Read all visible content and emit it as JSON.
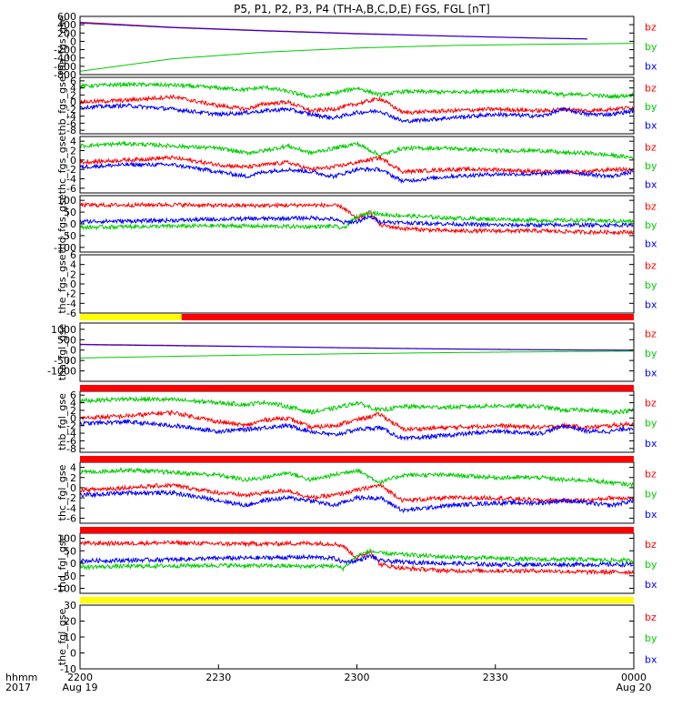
{
  "title": "P5, P1, P2, P3, P4 (TH-A,B,C,D,E) FGS, FGL [nT]",
  "colors": {
    "bz": "#ff0000",
    "by": "#00cc00",
    "bx": "#0000ff",
    "frame": "#000000",
    "bar_red": "#ff0000",
    "bar_yellow": "#ffff00"
  },
  "legend": [
    "bz",
    "by",
    "bx"
  ],
  "xaxis": {
    "row_labels": [
      "hhmm",
      "2017"
    ],
    "ticks": [
      {
        "t": 0,
        "label": "2200",
        "date": "Aug 19"
      },
      {
        "t": 30,
        "label": "2230",
        "date": ""
      },
      {
        "t": 60,
        "label": "2300",
        "date": ""
      },
      {
        "t": 90,
        "label": "2330",
        "date": ""
      },
      {
        "t": 120,
        "label": "0000",
        "date": "Aug 20"
      }
    ]
  },
  "chart_data": [
    {
      "type": "line",
      "name": "tha_fgs_gse",
      "ylabel": "tha_fgs_gse",
      "ylim": [
        -800,
        600
      ],
      "yticks": [
        600,
        400,
        200,
        0,
        -200,
        -400,
        -600,
        -800
      ],
      "series": [
        {
          "name": "bz",
          "x": [
            0,
            20,
            40,
            60,
            80,
            100,
            110
          ],
          "y": [
            460,
            340,
            260,
            190,
            130,
            80,
            60
          ]
        },
        {
          "name": "by",
          "x": [
            0,
            20,
            40,
            60,
            80,
            100,
            120
          ],
          "y": [
            -720,
            -420,
            -260,
            -160,
            -100,
            -70,
            -50
          ]
        },
        {
          "name": "bx",
          "x": [
            0,
            20,
            40,
            60,
            80,
            100,
            110
          ],
          "y": [
            440,
            330,
            250,
            180,
            125,
            75,
            55
          ]
        }
      ]
    },
    {
      "type": "line",
      "name": "thb_fgs_gse",
      "ylabel": "thb_fgs_gse",
      "ylim": [
        -9,
        7
      ],
      "yticks": [
        6,
        4,
        2,
        0,
        -2,
        -4,
        -6,
        -8
      ],
      "series": [
        {
          "name": "by",
          "x": [
            0,
            10,
            20,
            30,
            36,
            40,
            45,
            50,
            55,
            60,
            65,
            70,
            80,
            90,
            100,
            105,
            110,
            115,
            120
          ],
          "y": [
            4.5,
            5.0,
            4.8,
            4.0,
            3.5,
            4.2,
            3.0,
            1.5,
            2.5,
            4.0,
            2.0,
            3.0,
            2.8,
            3.2,
            3.0,
            2.0,
            2.2,
            1.5,
            2.0
          ]
        },
        {
          "name": "bz",
          "x": [
            0,
            10,
            20,
            30,
            36,
            40,
            45,
            50,
            55,
            60,
            65,
            70,
            80,
            90,
            100,
            105,
            110,
            115,
            120
          ],
          "y": [
            0,
            0.5,
            1.5,
            -1.0,
            -2.0,
            -0.5,
            0,
            -2.5,
            -2.0,
            -0.5,
            1.0,
            -3.0,
            -2.5,
            -2.0,
            -2.5,
            -2.0,
            -2.5,
            -2.0,
            -1.5
          ]
        },
        {
          "name": "bx",
          "x": [
            0,
            10,
            20,
            30,
            36,
            40,
            45,
            50,
            55,
            60,
            65,
            70,
            80,
            90,
            100,
            105,
            110,
            115,
            120
          ],
          "y": [
            -1.5,
            -1.0,
            -2.0,
            -3.5,
            -3.0,
            -2.5,
            -2.0,
            -3.5,
            -4.5,
            -3.0,
            -2.5,
            -5.5,
            -4.5,
            -3.5,
            -4.0,
            -2.0,
            -3.5,
            -3.5,
            -2.5
          ]
        }
      ]
    },
    {
      "type": "line",
      "name": "thc_fgs_gse",
      "ylabel": "thc_fgs_gse",
      "ylim": [
        -7,
        5
      ],
      "yticks": [
        4,
        2,
        0,
        -2,
        -4,
        -6
      ],
      "series": [
        {
          "name": "by",
          "x": [
            0,
            10,
            20,
            30,
            36,
            40,
            45,
            50,
            55,
            60,
            65,
            70,
            80,
            90,
            100,
            105,
            110,
            115,
            120
          ],
          "y": [
            3.0,
            3.5,
            3.0,
            2.5,
            1.5,
            2.0,
            3.0,
            1.5,
            2.5,
            3.5,
            1.0,
            2.5,
            2.5,
            2.0,
            2.0,
            1.5,
            1.5,
            1.0,
            0.5
          ]
        },
        {
          "name": "bz",
          "x": [
            0,
            10,
            20,
            30,
            36,
            40,
            45,
            50,
            55,
            60,
            65,
            70,
            80,
            90,
            100,
            105,
            110,
            115,
            120
          ],
          "y": [
            -0.5,
            0,
            0.5,
            -1.0,
            -1.5,
            -1.0,
            -0.5,
            -2.0,
            -1.5,
            -0.5,
            0.5,
            -2.5,
            -2.0,
            -2.0,
            -2.5,
            -2.5,
            -2.5,
            -2.0,
            -2.0
          ]
        },
        {
          "name": "bx",
          "x": [
            0,
            10,
            20,
            30,
            36,
            40,
            45,
            50,
            55,
            60,
            65,
            70,
            80,
            90,
            100,
            105,
            110,
            115,
            120
          ],
          "y": [
            -1.5,
            -1.0,
            -1.0,
            -2.5,
            -3.5,
            -2.5,
            -2.0,
            -2.5,
            -3.5,
            -2.0,
            -2.0,
            -4.5,
            -3.5,
            -3.0,
            -3.0,
            -2.5,
            -3.0,
            -3.5,
            -2.5
          ]
        }
      ]
    },
    {
      "type": "line",
      "name": "thd_fgs_gse",
      "ylabel": "thd_fgs_gse",
      "ylim": [
        -120,
        120
      ],
      "yticks": [
        100,
        50,
        0,
        -50,
        -100
      ],
      "series": [
        {
          "name": "bz",
          "x": [
            0,
            10,
            20,
            30,
            40,
            50,
            55,
            57,
            60,
            63,
            65,
            70,
            80,
            90,
            100,
            110,
            120
          ],
          "y": [
            80,
            80,
            82,
            78,
            78,
            80,
            78,
            70,
            20,
            50,
            -5,
            -20,
            -30,
            -30,
            -30,
            -35,
            -35
          ]
        },
        {
          "name": "by",
          "x": [
            0,
            10,
            20,
            30,
            40,
            50,
            55,
            57,
            60,
            63,
            65,
            70,
            80,
            90,
            100,
            110,
            120
          ],
          "y": [
            -15,
            -12,
            -10,
            -8,
            -10,
            -12,
            -10,
            -20,
            30,
            50,
            40,
            35,
            25,
            20,
            15,
            15,
            10
          ]
        },
        {
          "name": "bx",
          "x": [
            0,
            10,
            20,
            30,
            40,
            50,
            55,
            57,
            60,
            63,
            65,
            70,
            80,
            90,
            100,
            110,
            120
          ],
          "y": [
            10,
            12,
            15,
            20,
            22,
            25,
            20,
            5,
            10,
            30,
            10,
            5,
            0,
            -5,
            -5,
            -5,
            -5
          ]
        }
      ]
    },
    {
      "type": "line",
      "name": "the_fgs_gse",
      "ylabel": "the_fgs_gse",
      "ylim": [
        -6,
        6
      ],
      "yticks": [
        6,
        4,
        2,
        0,
        -2,
        -4,
        -6
      ],
      "series": []
    },
    {
      "type": "line",
      "name": "tha_fgl_gse",
      "ylabel": "tha_fgl_gse",
      "ylim": [
        -1500,
        1300
      ],
      "yticks": [
        1000,
        500,
        0,
        -500,
        -1000
      ],
      "series": [
        {
          "name": "bz",
          "x": [
            0,
            20,
            40,
            60,
            80,
            100,
            120
          ],
          "y": [
            280,
            230,
            170,
            110,
            60,
            20,
            0
          ]
        },
        {
          "name": "by",
          "x": [
            0,
            20,
            40,
            60,
            80,
            100,
            120
          ],
          "y": [
            -380,
            -300,
            -230,
            -170,
            -120,
            -80,
            -50
          ]
        },
        {
          "name": "bx",
          "x": [
            0,
            20,
            40,
            60,
            80,
            100,
            120
          ],
          "y": [
            260,
            210,
            160,
            100,
            50,
            10,
            -10
          ]
        }
      ]
    },
    {
      "type": "line",
      "name": "thb_fgl_gse",
      "ylabel": "thb_fgl_gse",
      "ylim": [
        -9,
        7
      ],
      "yticks": [
        6,
        4,
        2,
        0,
        -2,
        -4,
        -6,
        -8
      ],
      "series": [
        {
          "name": "by",
          "x": [
            0,
            10,
            20,
            30,
            36,
            40,
            45,
            50,
            55,
            60,
            65,
            70,
            80,
            90,
            100,
            105,
            110,
            115,
            120
          ],
          "y": [
            4.5,
            5.0,
            4.8,
            4.0,
            3.5,
            4.2,
            3.0,
            1.5,
            2.5,
            4.0,
            2.0,
            3.0,
            2.8,
            3.2,
            3.0,
            2.0,
            2.2,
            1.5,
            2.0
          ]
        },
        {
          "name": "bz",
          "x": [
            0,
            10,
            20,
            30,
            36,
            40,
            45,
            50,
            55,
            60,
            65,
            70,
            80,
            90,
            100,
            105,
            110,
            115,
            120
          ],
          "y": [
            0,
            0.5,
            1.5,
            -1.0,
            -2.0,
            -0.5,
            0,
            -2.5,
            -2.0,
            -0.5,
            1.0,
            -3.0,
            -2.5,
            -2.0,
            -2.5,
            -2.0,
            -2.5,
            -2.0,
            -1.5
          ]
        },
        {
          "name": "bx",
          "x": [
            0,
            10,
            20,
            30,
            36,
            40,
            45,
            50,
            55,
            60,
            65,
            70,
            80,
            90,
            100,
            105,
            110,
            115,
            120
          ],
          "y": [
            -1.5,
            -1.0,
            -2.0,
            -3.5,
            -3.0,
            -2.5,
            -2.0,
            -3.5,
            -4.5,
            -3.0,
            -2.5,
            -5.5,
            -4.5,
            -3.5,
            -4.0,
            -2.0,
            -3.5,
            -3.5,
            -2.5
          ]
        }
      ]
    },
    {
      "type": "line",
      "name": "thc_fgl_gse",
      "ylabel": "thc_fgl_gse",
      "ylim": [
        -7,
        5
      ],
      "yticks": [
        4,
        2,
        0,
        -2,
        -4,
        -6
      ],
      "series": [
        {
          "name": "by",
          "x": [
            0,
            10,
            20,
            30,
            36,
            40,
            45,
            50,
            55,
            60,
            65,
            70,
            80,
            90,
            100,
            105,
            110,
            115,
            120
          ],
          "y": [
            3.0,
            3.5,
            3.0,
            2.5,
            1.5,
            2.0,
            3.0,
            1.5,
            2.5,
            3.5,
            1.0,
            2.5,
            2.5,
            2.0,
            2.0,
            1.5,
            1.5,
            1.0,
            0.5
          ]
        },
        {
          "name": "bz",
          "x": [
            0,
            10,
            20,
            30,
            36,
            40,
            45,
            50,
            55,
            60,
            65,
            70,
            80,
            90,
            100,
            105,
            110,
            115,
            120
          ],
          "y": [
            -0.5,
            0,
            0.5,
            -1.0,
            -1.5,
            -1.0,
            -0.5,
            -2.0,
            -1.5,
            -0.5,
            0.5,
            -2.5,
            -2.0,
            -2.0,
            -2.5,
            -2.5,
            -2.5,
            -2.0,
            -2.0
          ]
        },
        {
          "name": "bx",
          "x": [
            0,
            10,
            20,
            30,
            36,
            40,
            45,
            50,
            55,
            60,
            65,
            70,
            80,
            90,
            100,
            105,
            110,
            115,
            120
          ],
          "y": [
            -1.5,
            -1.0,
            -1.0,
            -2.5,
            -3.5,
            -2.5,
            -2.0,
            -2.5,
            -3.5,
            -2.0,
            -2.0,
            -4.5,
            -3.5,
            -3.0,
            -3.0,
            -2.5,
            -3.0,
            -3.5,
            -2.5
          ]
        }
      ]
    },
    {
      "type": "line",
      "name": "thd_fgl_gse",
      "ylabel": "thd_fgl_gse",
      "ylim": [
        -120,
        120
      ],
      "yticks": [
        100,
        50,
        0,
        -50,
        -100
      ],
      "series": [
        {
          "name": "bz",
          "x": [
            0,
            10,
            20,
            30,
            40,
            50,
            55,
            57,
            60,
            63,
            65,
            70,
            80,
            90,
            100,
            110,
            120
          ],
          "y": [
            80,
            80,
            82,
            78,
            78,
            80,
            78,
            70,
            20,
            50,
            -5,
            -20,
            -30,
            -30,
            -30,
            -35,
            -35
          ]
        },
        {
          "name": "by",
          "x": [
            0,
            10,
            20,
            30,
            40,
            50,
            55,
            57,
            60,
            63,
            65,
            70,
            80,
            90,
            100,
            110,
            120
          ],
          "y": [
            -15,
            -12,
            -10,
            -8,
            -10,
            -12,
            -10,
            -20,
            30,
            50,
            40,
            35,
            25,
            20,
            15,
            15,
            10
          ]
        },
        {
          "name": "bx",
          "x": [
            0,
            10,
            20,
            30,
            40,
            50,
            55,
            57,
            60,
            63,
            65,
            70,
            80,
            90,
            100,
            110,
            120
          ],
          "y": [
            10,
            12,
            15,
            20,
            22,
            25,
            20,
            5,
            10,
            30,
            10,
            5,
            0,
            -5,
            -5,
            -5,
            -5
          ]
        }
      ]
    },
    {
      "type": "line",
      "name": "the_fgl_gse",
      "ylabel": "the_fgl_gse",
      "ylim": [
        -10,
        30
      ],
      "yticks": [
        30,
        20,
        10,
        0,
        -10
      ],
      "series": []
    }
  ],
  "status_bars": [
    {
      "after_panel": 4,
      "segments": [
        {
          "from": 0,
          "to": 22,
          "color": "yellow"
        },
        {
          "from": 22,
          "to": 120,
          "color": "red"
        }
      ]
    },
    {
      "after_panel": 5,
      "segments": [
        {
          "from": 0,
          "to": 120,
          "color": "red"
        }
      ]
    },
    {
      "after_panel": 6,
      "segments": [
        {
          "from": 0,
          "to": 120,
          "color": "red"
        }
      ]
    },
    {
      "after_panel": 7,
      "segments": [
        {
          "from": 0,
          "to": 120,
          "color": "red"
        }
      ]
    },
    {
      "after_panel": 8,
      "segments": [
        {
          "from": 0,
          "to": 120,
          "color": "yellow"
        }
      ]
    }
  ]
}
